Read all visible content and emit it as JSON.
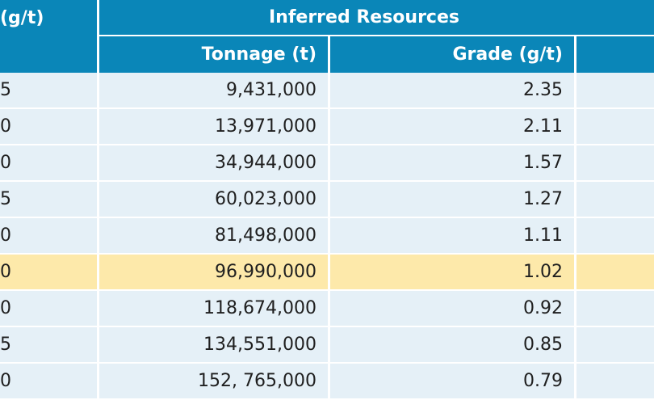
{
  "header": {
    "left_partial_label": "(g/t)",
    "group_label": "Inferred Resources",
    "columns": [
      "Tonnage (t)",
      "Grade (g/t)",
      ""
    ]
  },
  "rows": [
    {
      "left": "5",
      "tonnage": "9,431,000",
      "grade": "2.35",
      "extra": ""
    },
    {
      "left": "0",
      "tonnage": "13,971,000",
      "grade": "2.11",
      "extra": ""
    },
    {
      "left": "0",
      "tonnage": "34,944,000",
      "grade": "1.57",
      "extra": ""
    },
    {
      "left": "5",
      "tonnage": "60,023,000",
      "grade": "1.27",
      "extra": ""
    },
    {
      "left": "0",
      "tonnage": "81,498,000",
      "grade": "1.11",
      "extra": ""
    },
    {
      "left": "0",
      "tonnage": "96,990,000",
      "grade": "1.02",
      "extra": "",
      "highlighted": true
    },
    {
      "left": "0",
      "tonnage": "118,674,000",
      "grade": "0.92",
      "extra": ""
    },
    {
      "left": "5",
      "tonnage": "134,551,000",
      "grade": "0.85",
      "extra": ""
    },
    {
      "left": "0",
      "tonnage": "152, 765,000",
      "grade": "0.79",
      "extra": ""
    }
  ],
  "colors": {
    "header_bg": "#0a86b8",
    "row_bg": "#e5f0f7",
    "highlight_bg": "#fde9aa"
  }
}
